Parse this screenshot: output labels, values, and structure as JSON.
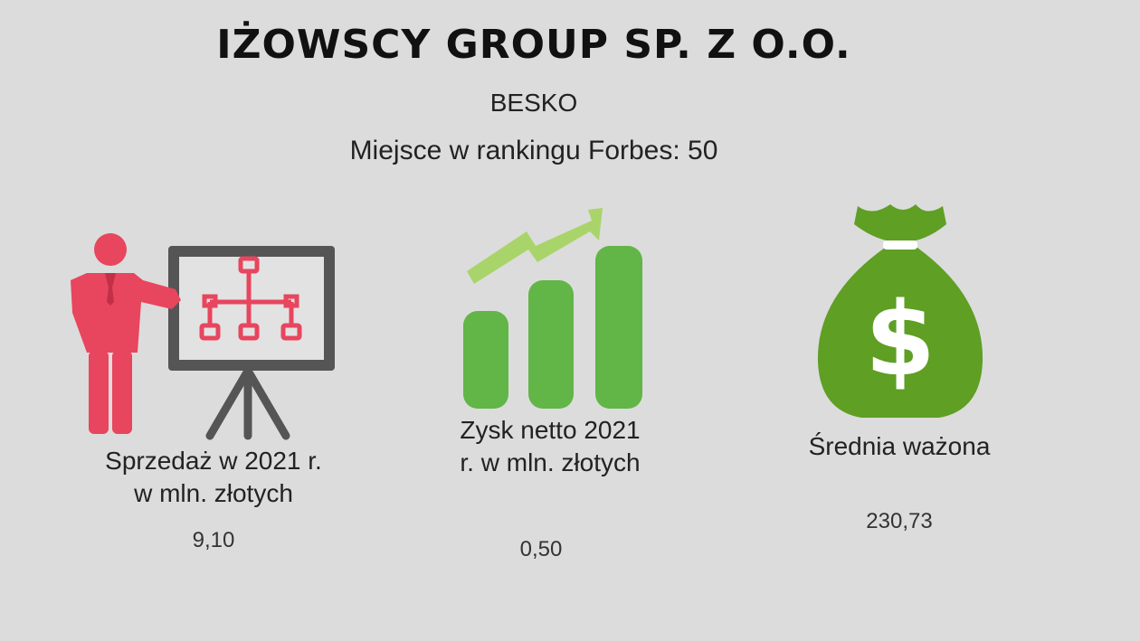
{
  "header": {
    "title": "IŻOWSCY GROUP SP. Z O.O.",
    "city": "BESKO",
    "ranking": "Miejsce w rankingu Forbes: 50"
  },
  "colors": {
    "background": "#dcdcdc",
    "presenter_red": "#e8455e",
    "board_gray": "#555555",
    "bars_green": "#62b547",
    "arrow_lightgreen": "#a9d46a",
    "bag_green": "#5e9f24"
  },
  "stats": [
    {
      "icon": "presentation-icon",
      "label_line1": "Sprzedaż w 2021 r.",
      "label_line2": "w mln. złotych",
      "value": "9,10"
    },
    {
      "icon": "growth-chart-icon",
      "label_line1": "Zysk netto 2021",
      "label_line2": "r. w mln. złotych",
      "value": "0,50"
    },
    {
      "icon": "money-bag-icon",
      "label_line1": "Średnia ważona",
      "label_line2": "",
      "value": "230,73"
    }
  ]
}
